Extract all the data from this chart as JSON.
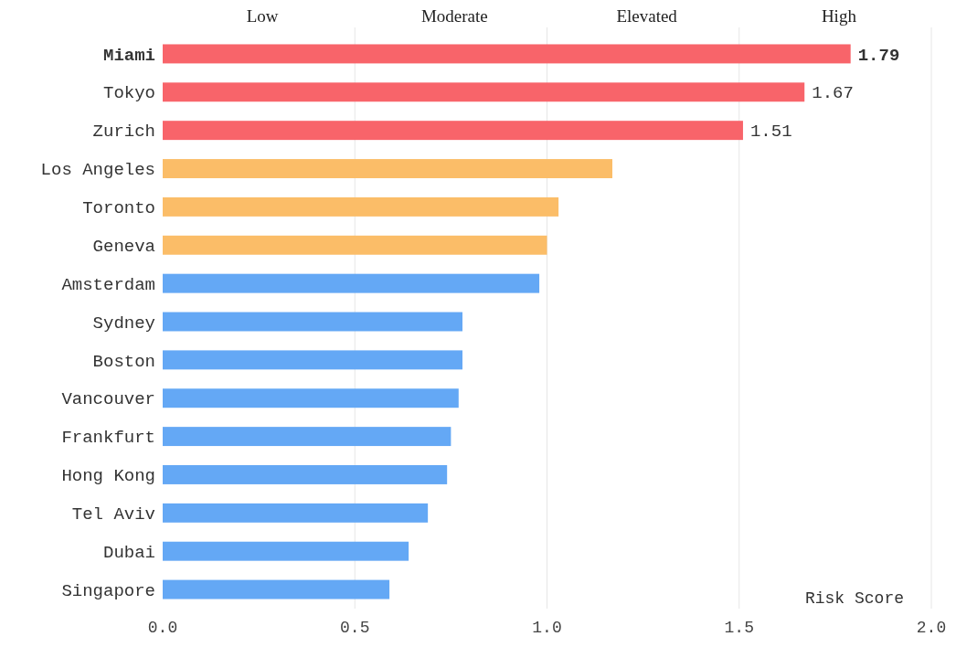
{
  "chart_data": {
    "type": "bar",
    "orientation": "horizontal",
    "xlabel": "Risk Score",
    "categories": [
      "Miami",
      "Tokyo",
      "Zurich",
      "Los Angeles",
      "Toronto",
      "Geneva",
      "Amsterdam",
      "Sydney",
      "Boston",
      "Vancouver",
      "Frankfurt",
      "Hong Kong",
      "Tel Aviv",
      "Dubai",
      "Singapore"
    ],
    "values": [
      1.79,
      1.67,
      1.51,
      1.17,
      1.03,
      1.0,
      0.98,
      0.78,
      0.78,
      0.77,
      0.75,
      0.74,
      0.69,
      0.64,
      0.59
    ],
    "colors": [
      "#f8646a",
      "#f8646a",
      "#f8646a",
      "#fbbd68",
      "#fbbd68",
      "#fbbd68",
      "#64a8f5",
      "#64a8f5",
      "#64a8f5",
      "#64a8f5",
      "#64a8f5",
      "#64a8f5",
      "#64a8f5",
      "#64a8f5",
      "#64a8f5"
    ],
    "value_labels": [
      "1.79",
      "1.67",
      "1.51",
      null,
      null,
      null,
      null,
      null,
      null,
      null,
      null,
      null,
      null,
      null,
      null
    ],
    "xlim": [
      0,
      2
    ],
    "xticks": [
      {
        "value": 0,
        "label": "0.0"
      },
      {
        "value": 0.5,
        "label": "0.5"
      },
      {
        "value": 1,
        "label": "1.0"
      },
      {
        "value": 1.5,
        "label": "1.5"
      },
      {
        "value": 2,
        "label": "2.0"
      }
    ],
    "grid": "x",
    "annotations": [
      "Low",
      "Moderate",
      "Elevated",
      "High"
    ]
  }
}
